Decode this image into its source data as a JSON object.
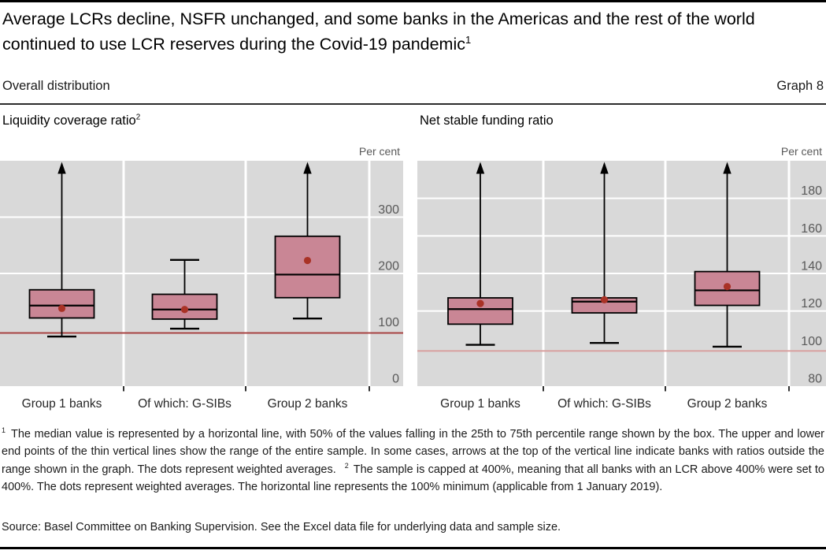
{
  "header": {
    "title": "Average LCRs decline, NSFR unchanged, and some banks in the Americas and the rest of the world continued to use LCR reserves during the Covid-19 pandemic",
    "title_footnote_ref": "1",
    "subtitle": "Overall distribution",
    "graph_number": "Graph 8"
  },
  "chart_data": [
    {
      "type": "boxplot",
      "title": "Liquidity coverage ratio",
      "title_footnote_ref": "2",
      "unit_label": "Per cent",
      "categories": [
        "Group 1 banks",
        "Of which: G-SIBs",
        "Group 2 banks"
      ],
      "ylim": [
        0,
        400
      ],
      "y_ticks": [
        0,
        100,
        200,
        300
      ],
      "gridlines": [
        200,
        300
      ],
      "grid": true,
      "legend_position": "none",
      "reference_line": 100,
      "reference_line_label": "100% minimum",
      "series": [
        {
          "category": "Group 1 banks",
          "whisker_low": 88,
          "q1": 121,
          "median": 143,
          "q3": 171,
          "whisker_high": 400,
          "high_capped_arrow": true,
          "weighted_average": 138
        },
        {
          "category": "Of which: G-SIBs",
          "whisker_low": 102,
          "q1": 119,
          "median": 136,
          "q3": 163,
          "whisker_high": 224,
          "high_capped_arrow": false,
          "weighted_average": 136
        },
        {
          "category": "Group 2 banks",
          "whisker_low": 120,
          "q1": 157,
          "median": 198,
          "q3": 266,
          "whisker_high": 400,
          "high_capped_arrow": true,
          "weighted_average": 223
        }
      ]
    },
    {
      "type": "boxplot",
      "title": "Net stable funding ratio",
      "title_footnote_ref": "",
      "unit_label": "Per cent",
      "categories": [
        "Group 1 banks",
        "Of which: G-SIBs",
        "Group 2 banks"
      ],
      "ylim": [
        80,
        200
      ],
      "y_ticks": [
        80,
        100,
        120,
        140,
        160,
        180
      ],
      "gridlines": [
        120,
        140,
        160,
        180
      ],
      "grid": true,
      "legend_position": "none",
      "reference_line": 100,
      "reference_line_label": "100% minimum",
      "series": [
        {
          "category": "Group 1 banks",
          "whisker_low": 102,
          "q1": 113,
          "median": 121,
          "q3": 127,
          "whisker_high": 200,
          "high_capped_arrow": true,
          "weighted_average": 124
        },
        {
          "category": "Of which: G-SIBs",
          "whisker_low": 103,
          "q1": 119,
          "median": 125,
          "q3": 127,
          "whisker_high": 200,
          "high_capped_arrow": true,
          "weighted_average": 126
        },
        {
          "category": "Group 2 banks",
          "whisker_low": 101,
          "q1": 123,
          "median": 131,
          "q3": 141,
          "whisker_high": 200,
          "high_capped_arrow": true,
          "weighted_average": 133
        }
      ]
    }
  ],
  "footnotes": {
    "ref1": "1",
    "text1": "The median value is represented by a horizontal line, with 50% of the values falling in the 25th to 75th percentile range shown by the box. The upper and lower end points of the thin vertical lines show the range of the entire sample. In some cases, arrows at the top of the vertical line indicate banks with ratios outside the range shown in the graph. The dots represent weighted averages.",
    "ref2": "2",
    "text2": "The sample is capped at 400%, meaning that all banks with an LCR above 400% were set to 400%. The dots represent weighted averages. The horizontal line represents the 100% minimum (applicable from 1 January 2019)."
  },
  "source": "Source: Basel Committee on Banking Supervision. See the Excel data file for underlying data and sample size.",
  "colors": {
    "plot_bg": "#d9d9d9",
    "gridline": "#ffffff",
    "box_fill": "#c98695",
    "box_border": "#000000",
    "median_line": "#000000",
    "mean_dot": "#a93226",
    "tick_label": "#595959",
    "category_label": "#262626",
    "axis_tick": "#333333",
    "reference_line_lcr": "#a84443",
    "reference_line_nsfr": "#d9a1a0"
  }
}
